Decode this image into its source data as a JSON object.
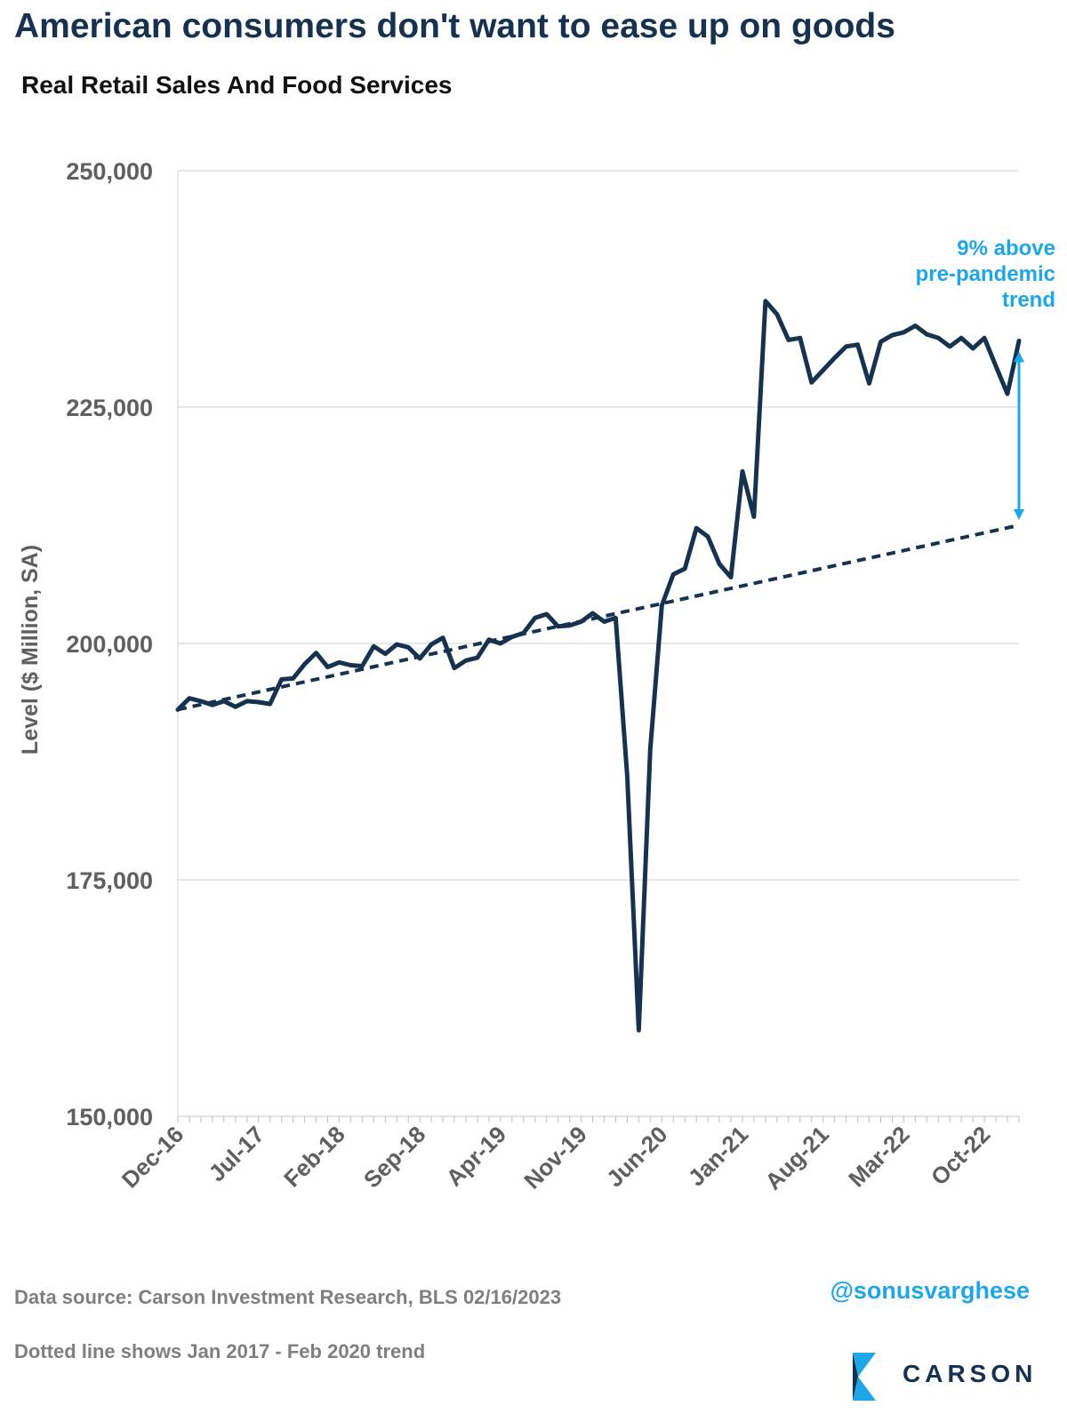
{
  "header": {
    "title": "American consumers don't want to ease up on goods",
    "subtitle": "Real Retail Sales And Food Services"
  },
  "colors": {
    "title": "#16324f",
    "series": "#16324f",
    "annotation": "#1ea7e8",
    "grid": "#d9d9d9",
    "axis_text": "#5f5f5f"
  },
  "chart_data": {
    "type": "line",
    "ylabel": "Level ($ Million, SA)",
    "ylim": [
      150000,
      250000
    ],
    "yticks": [
      150000,
      175000,
      200000,
      225000,
      250000
    ],
    "ytick_labels": [
      "150,000",
      "175,000",
      "200,000",
      "225,000",
      "250,000"
    ],
    "xtick_labels": [
      "Dec-16",
      "Jul-17",
      "Feb-18",
      "Sep-18",
      "Apr-19",
      "Nov-19",
      "Jun-20",
      "Jan-21",
      "Aug-21",
      "Mar-22",
      "Oct-22"
    ],
    "grid": "horizontal",
    "x_start": "Dec-16",
    "x_end": "Jan-23",
    "series": [
      {
        "style": "solid",
        "values": [
          193000,
          194200,
          193900,
          193500,
          193900,
          193300,
          193900,
          193800,
          193600,
          196200,
          196300,
          197800,
          199000,
          197500,
          198000,
          197700,
          197600,
          199700,
          198900,
          199900,
          199600,
          198400,
          199900,
          200600,
          197400,
          198200,
          198500,
          200400,
          200000,
          200700,
          201100,
          202700,
          203100,
          201800,
          201900,
          202300,
          203200,
          202300,
          202700,
          186000,
          159100,
          188800,
          204000,
          207300,
          207900,
          212200,
          211300,
          208400,
          207000,
          218200,
          213400,
          236200,
          234800,
          232100,
          232300,
          227600,
          228900,
          230200,
          231400,
          231600,
          227500,
          231900,
          232600,
          232900,
          233600,
          232700,
          232300,
          231400,
          232300,
          231200,
          232300,
          229300,
          226400,
          232000
        ]
      },
      {
        "style": "dashed",
        "values": [
          193000,
          212500
        ]
      }
    ],
    "annotations": [
      "9% above",
      "pre-pandemic",
      "trend"
    ]
  },
  "footer": {
    "source": "Data source: Carson Investment Research, BLS   02/16/2023",
    "note": "Dotted line shows Jan 2017 - Feb 2020 trend",
    "handle": "@sonusvarghese",
    "logo_text": "CARSON"
  }
}
